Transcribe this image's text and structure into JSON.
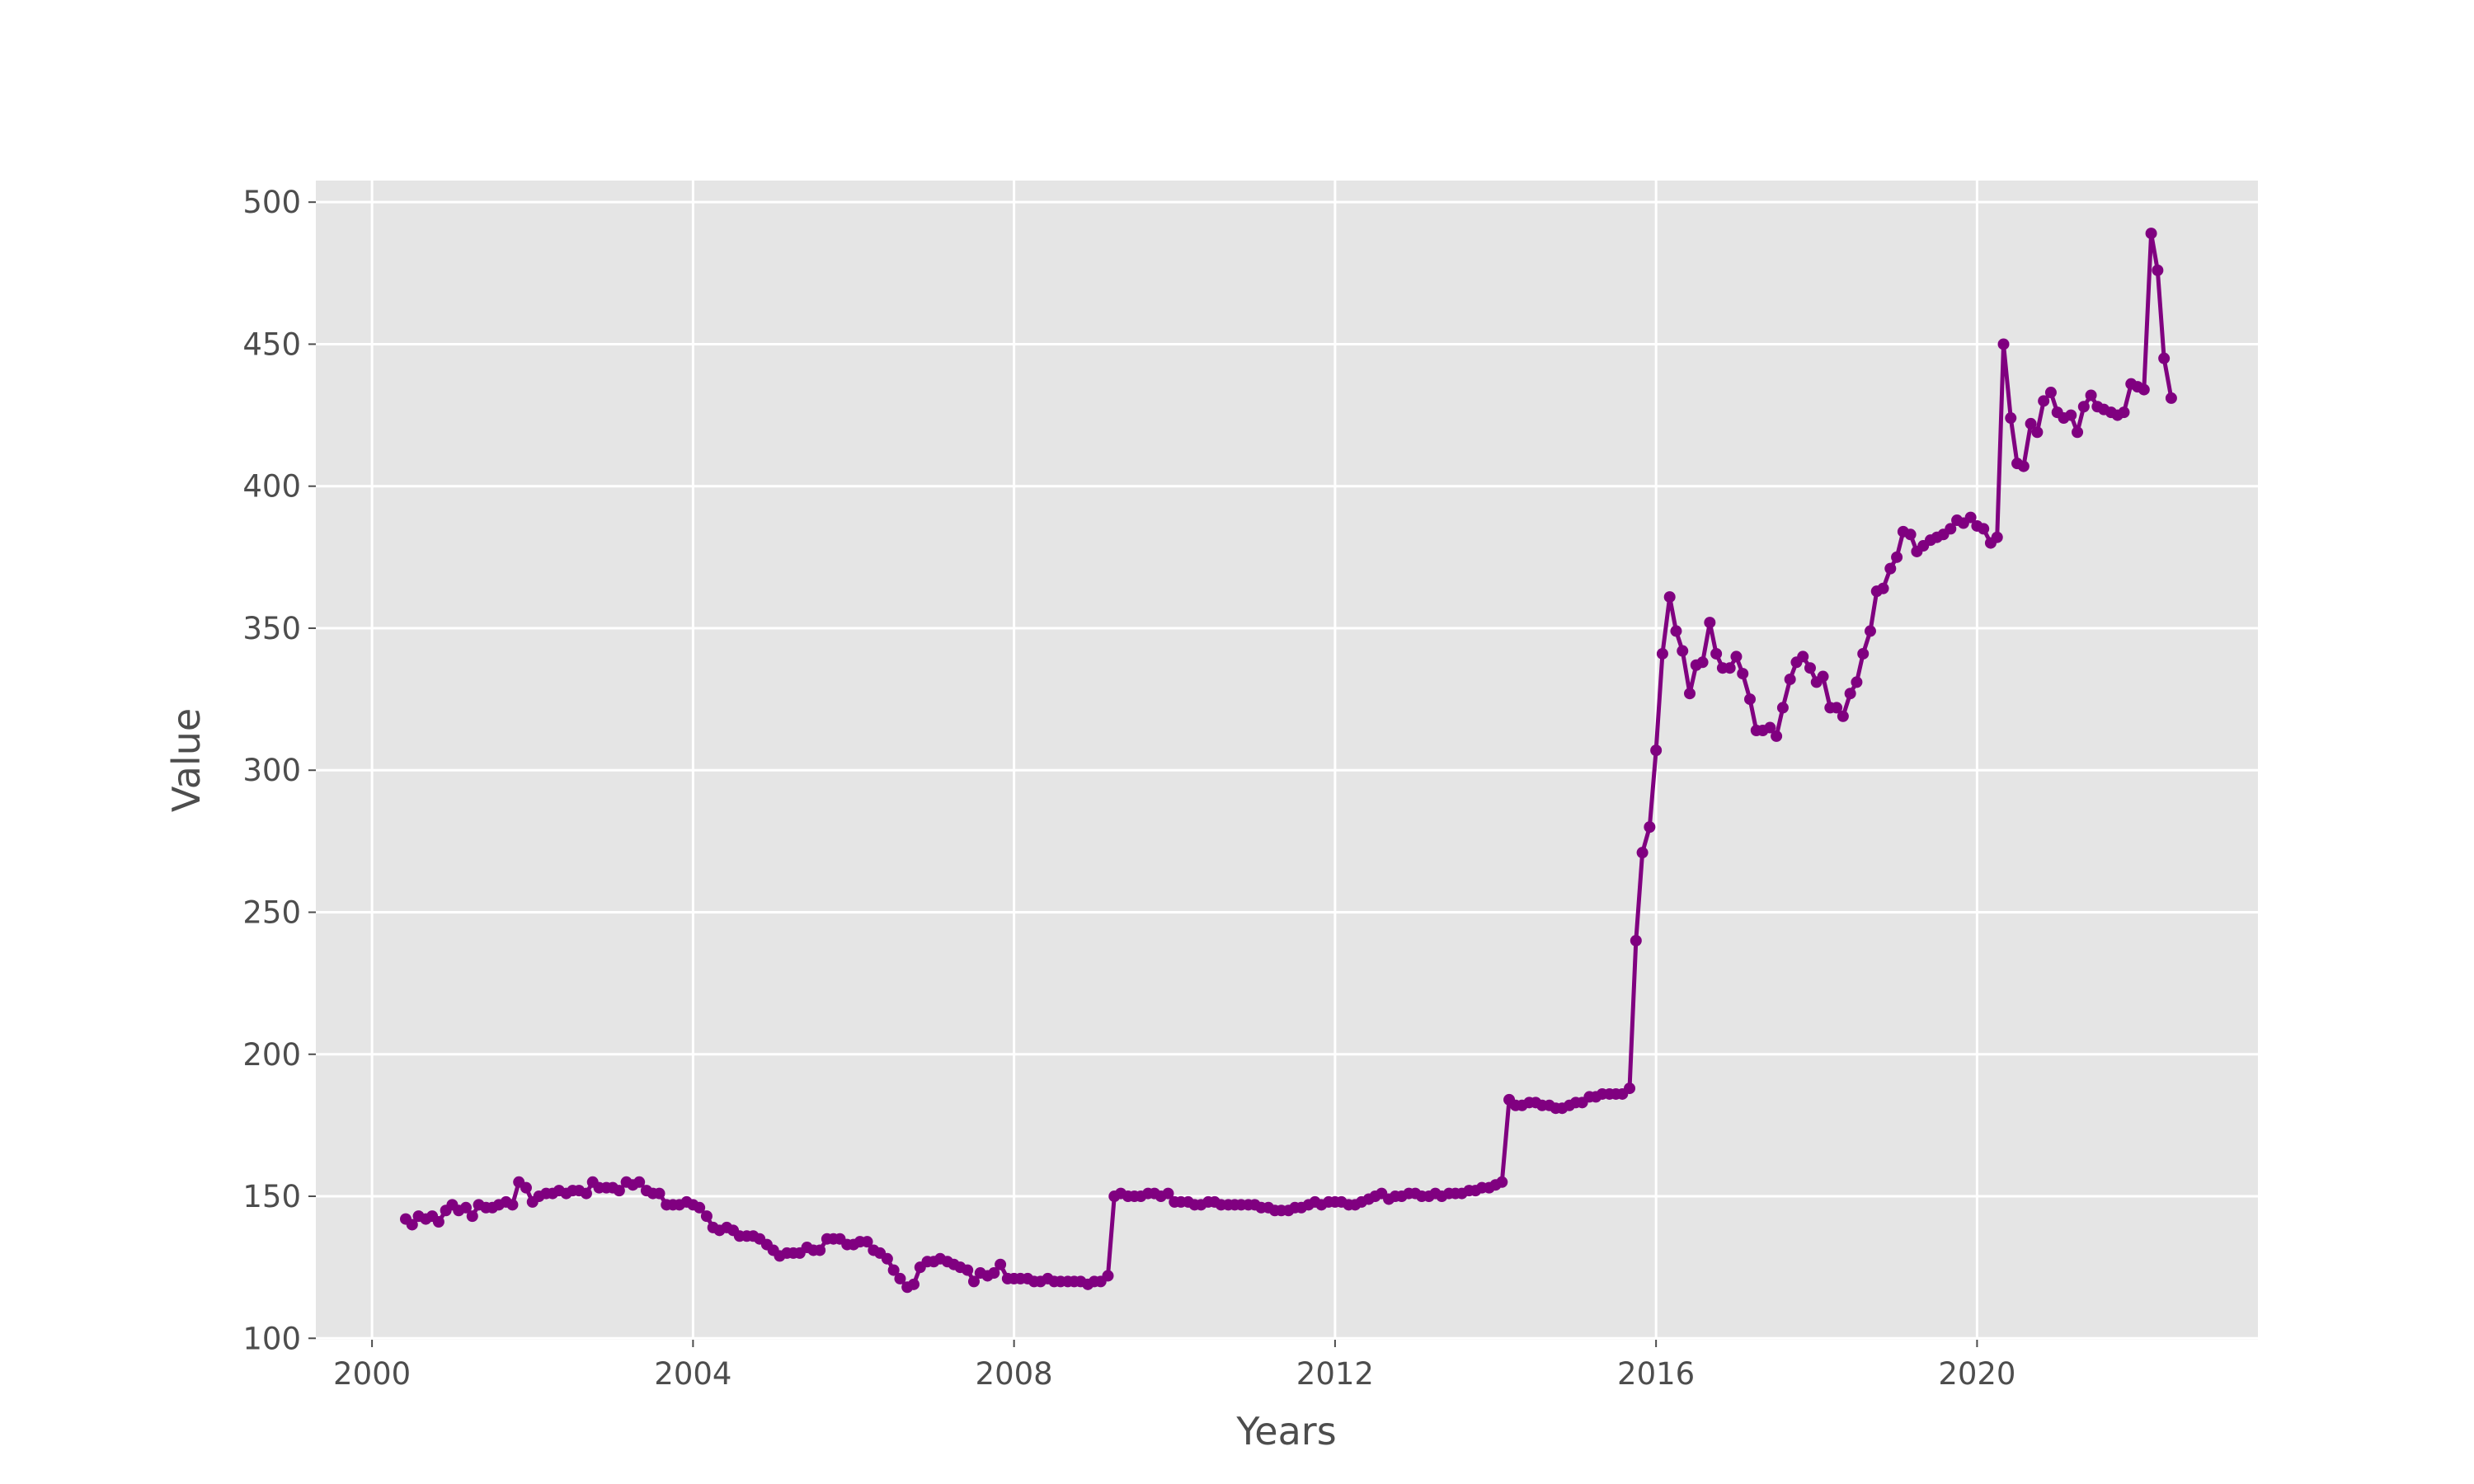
{
  "chart_data": {
    "type": "line",
    "x_label": "Years",
    "y_label": "Value",
    "color": "#800080",
    "grid": true,
    "xlim": [
      1999.3,
      2023.5
    ],
    "xticks": [
      2000,
      2004,
      2008,
      2012,
      2016,
      2020
    ],
    "ylim": [
      99.5,
      507.6
    ],
    "yticks": [
      100,
      150,
      200,
      250,
      300,
      350,
      400,
      450,
      500
    ],
    "x": [
      2000.42,
      2000.5,
      2000.58,
      2000.67,
      2000.75,
      2000.83,
      2000.92,
      2001,
      2001.08,
      2001.17,
      2001.25,
      2001.33,
      2001.42,
      2001.5,
      2001.58,
      2001.67,
      2001.75,
      2001.83,
      2001.92,
      2002,
      2002.08,
      2002.17,
      2002.25,
      2002.33,
      2002.42,
      2002.5,
      2002.58,
      2002.67,
      2002.75,
      2002.83,
      2002.92,
      2003,
      2003.08,
      2003.17,
      2003.25,
      2003.33,
      2003.42,
      2003.5,
      2003.58,
      2003.67,
      2003.75,
      2003.83,
      2003.92,
      2004,
      2004.08,
      2004.17,
      2004.25,
      2004.33,
      2004.42,
      2004.5,
      2004.58,
      2004.67,
      2004.75,
      2004.83,
      2004.92,
      2005,
      2005.08,
      2005.17,
      2005.25,
      2005.33,
      2005.42,
      2005.5,
      2005.58,
      2005.67,
      2005.75,
      2005.83,
      2005.92,
      2006,
      2006.08,
      2006.17,
      2006.25,
      2006.33,
      2006.42,
      2006.5,
      2006.58,
      2006.67,
      2006.75,
      2006.83,
      2006.92,
      2007,
      2007.08,
      2007.17,
      2007.25,
      2007.33,
      2007.42,
      2007.5,
      2007.58,
      2007.67,
      2007.75,
      2007.83,
      2007.92,
      2008,
      2008.08,
      2008.17,
      2008.25,
      2008.33,
      2008.42,
      2008.5,
      2008.58,
      2008.67,
      2008.75,
      2008.83,
      2008.92,
      2009,
      2009.08,
      2009.17,
      2009.25,
      2009.33,
      2009.42,
      2009.5,
      2009.58,
      2009.67,
      2009.75,
      2009.83,
      2009.92,
      2010,
      2010.08,
      2010.17,
      2010.25,
      2010.33,
      2010.42,
      2010.5,
      2010.58,
      2010.67,
      2010.75,
      2010.83,
      2010.92,
      2011,
      2011.08,
      2011.17,
      2011.25,
      2011.33,
      2011.42,
      2011.5,
      2011.58,
      2011.67,
      2011.75,
      2011.83,
      2011.92,
      2012,
      2012.08,
      2012.17,
      2012.25,
      2012.33,
      2012.42,
      2012.5,
      2012.58,
      2012.67,
      2012.75,
      2012.83,
      2012.92,
      2013,
      2013.08,
      2013.17,
      2013.25,
      2013.33,
      2013.42,
      2013.5,
      2013.58,
      2013.67,
      2013.75,
      2013.83,
      2013.92,
      2014,
      2014.08,
      2014.17,
      2014.25,
      2014.33,
      2014.42,
      2014.5,
      2014.58,
      2014.67,
      2014.75,
      2014.83,
      2014.92,
      2015,
      2015.08,
      2015.17,
      2015.25,
      2015.33,
      2015.42,
      2015.5,
      2015.58,
      2015.67,
      2015.75,
      2015.83,
      2015.92,
      2016,
      2016.08,
      2016.17,
      2016.25,
      2016.33,
      2016.42,
      2016.5,
      2016.58,
      2016.67,
      2016.75,
      2016.83,
      2016.92,
      2017,
      2017.08,
      2017.17,
      2017.25,
      2017.33,
      2017.42,
      2017.5,
      2017.58,
      2017.67,
      2017.75,
      2017.83,
      2017.92,
      2018,
      2018.08,
      2018.17,
      2018.25,
      2018.33,
      2018.42,
      2018.5,
      2018.58,
      2018.67,
      2018.75,
      2018.83,
      2018.92,
      2019,
      2019.08,
      2019.17,
      2019.25,
      2019.33,
      2019.42,
      2019.5,
      2019.58,
      2019.67,
      2019.75,
      2019.83,
      2019.92,
      2020,
      2020.08,
      2020.17,
      2020.25,
      2020.33,
      2020.42,
      2020.5,
      2020.58,
      2020.67,
      2020.75,
      2020.83,
      2020.92,
      2021,
      2021.08,
      2021.17,
      2021.25,
      2021.33,
      2021.42,
      2021.5,
      2021.58,
      2021.67,
      2021.75,
      2021.83,
      2021.92,
      2022,
      2022.08,
      2022.17,
      2022.25,
      2022.33,
      2022.42
    ],
    "values": [
      142,
      140,
      143,
      142,
      143,
      141,
      145,
      147,
      145,
      146,
      143,
      147,
      146,
      146,
      147,
      148,
      147,
      155,
      153,
      148,
      150,
      151,
      151,
      152,
      151,
      152,
      152,
      151,
      155,
      153,
      153,
      153,
      152,
      155,
      154,
      155,
      152,
      151,
      151,
      147,
      147,
      147,
      148,
      147,
      146,
      143,
      139,
      138,
      139,
      138,
      136,
      136,
      136,
      135,
      133,
      131,
      129,
      130,
      130,
      130,
      132,
      131,
      131,
      135,
      135,
      135,
      133,
      133,
      134,
      134,
      131,
      130,
      128,
      124,
      121,
      118,
      119,
      125,
      127,
      127,
      128,
      127,
      126,
      125,
      124,
      120,
      123,
      122,
      123,
      126,
      121,
      121,
      121,
      121,
      120,
      120,
      121,
      120,
      120,
      120,
      120,
      120,
      119,
      120,
      120,
      122,
      150,
      151,
      150,
      150,
      150,
      151,
      151,
      150,
      151,
      148,
      148,
      148,
      147,
      147,
      148,
      148,
      147,
      147,
      147,
      147,
      147,
      147,
      146,
      146,
      145,
      145,
      145,
      146,
      146,
      147,
      148,
      147,
      148,
      148,
      148,
      147,
      147,
      148,
      149,
      150,
      151,
      149,
      150,
      150,
      151,
      151,
      150,
      150,
      151,
      150,
      151,
      151,
      151,
      152,
      152,
      153,
      153,
      154,
      155,
      184,
      182,
      182,
      183,
      183,
      182,
      182,
      181,
      181,
      182,
      183,
      183,
      185,
      185,
      186,
      186,
      186,
      186,
      188,
      240,
      271,
      280,
      307,
      341,
      361,
      349,
      342,
      327,
      337,
      338,
      352,
      341,
      336,
      336,
      340,
      334,
      325,
      314,
      314,
      315,
      312,
      322,
      332,
      338,
      340,
      336,
      331,
      333,
      322,
      322,
      319,
      327,
      331,
      341,
      349,
      363,
      364,
      371,
      375,
      384,
      383,
      377,
      379,
      381,
      382,
      383,
      385,
      388,
      387,
      389,
      386,
      385,
      380,
      382,
      450,
      424,
      408,
      407,
      422,
      419,
      430,
      433,
      426,
      424,
      425,
      419,
      428,
      432,
      428,
      427,
      426,
      425,
      426,
      436,
      435,
      434,
      489,
      476,
      445,
      431
    ]
  }
}
